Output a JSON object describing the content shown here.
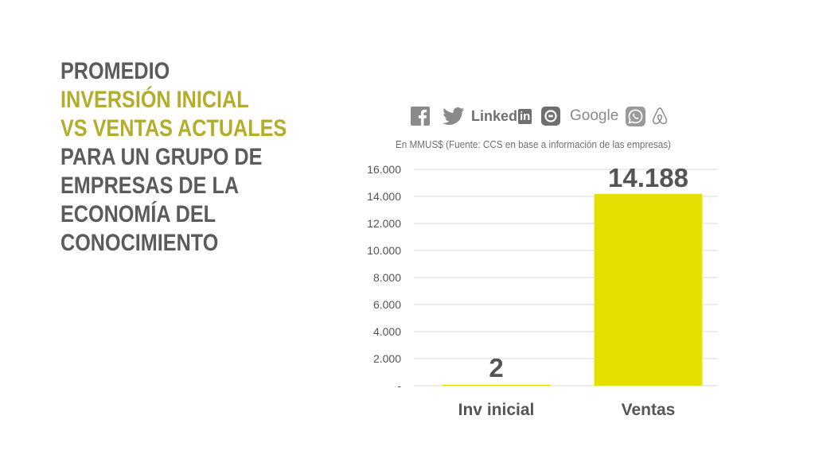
{
  "title": {
    "line1": "PROMEDIO",
    "line2": "INVERSIÓN INICIAL",
    "line3": "VS VENTAS ACTUALES",
    "line4": "PARA UN GRUPO DE",
    "line5": "EMPRESAS DE LA",
    "line6": "ECONOMÍA DEL",
    "line7": "CONOCIMIENTO"
  },
  "logos": {
    "linkedin_text": "Linked",
    "linkedin_in": "in",
    "google": "Google",
    "icons": [
      "facebook-icon",
      "twitter-icon",
      "linkedin-icon",
      "uber-icon",
      "google-icon",
      "whatsapp-icon",
      "airbnb-icon"
    ]
  },
  "subtitle": "En MMUS$ (Fuente: CCS en base a información de las empresas)",
  "colors": {
    "title_gray": "#5b5b5b",
    "title_olive": "#b3ad2a",
    "bar": "#e6e000",
    "grid": "#d9d9d9",
    "text": "#555555"
  },
  "chart_data": {
    "type": "bar",
    "categories": [
      "Inv inicial",
      "Ventas"
    ],
    "values": [
      2,
      14188
    ],
    "value_labels": [
      "2",
      "14.188"
    ],
    "ylim": [
      0,
      16000
    ],
    "yticks": [
      0,
      2000,
      4000,
      6000,
      8000,
      10000,
      12000,
      14000,
      16000
    ],
    "ytick_labels": [
      "-",
      "2.000",
      "4.000",
      "6.000",
      "8.000",
      "10.000",
      "12.000",
      "14.000",
      "16.000"
    ],
    "grid": true,
    "xlabel": "",
    "ylabel": ""
  }
}
